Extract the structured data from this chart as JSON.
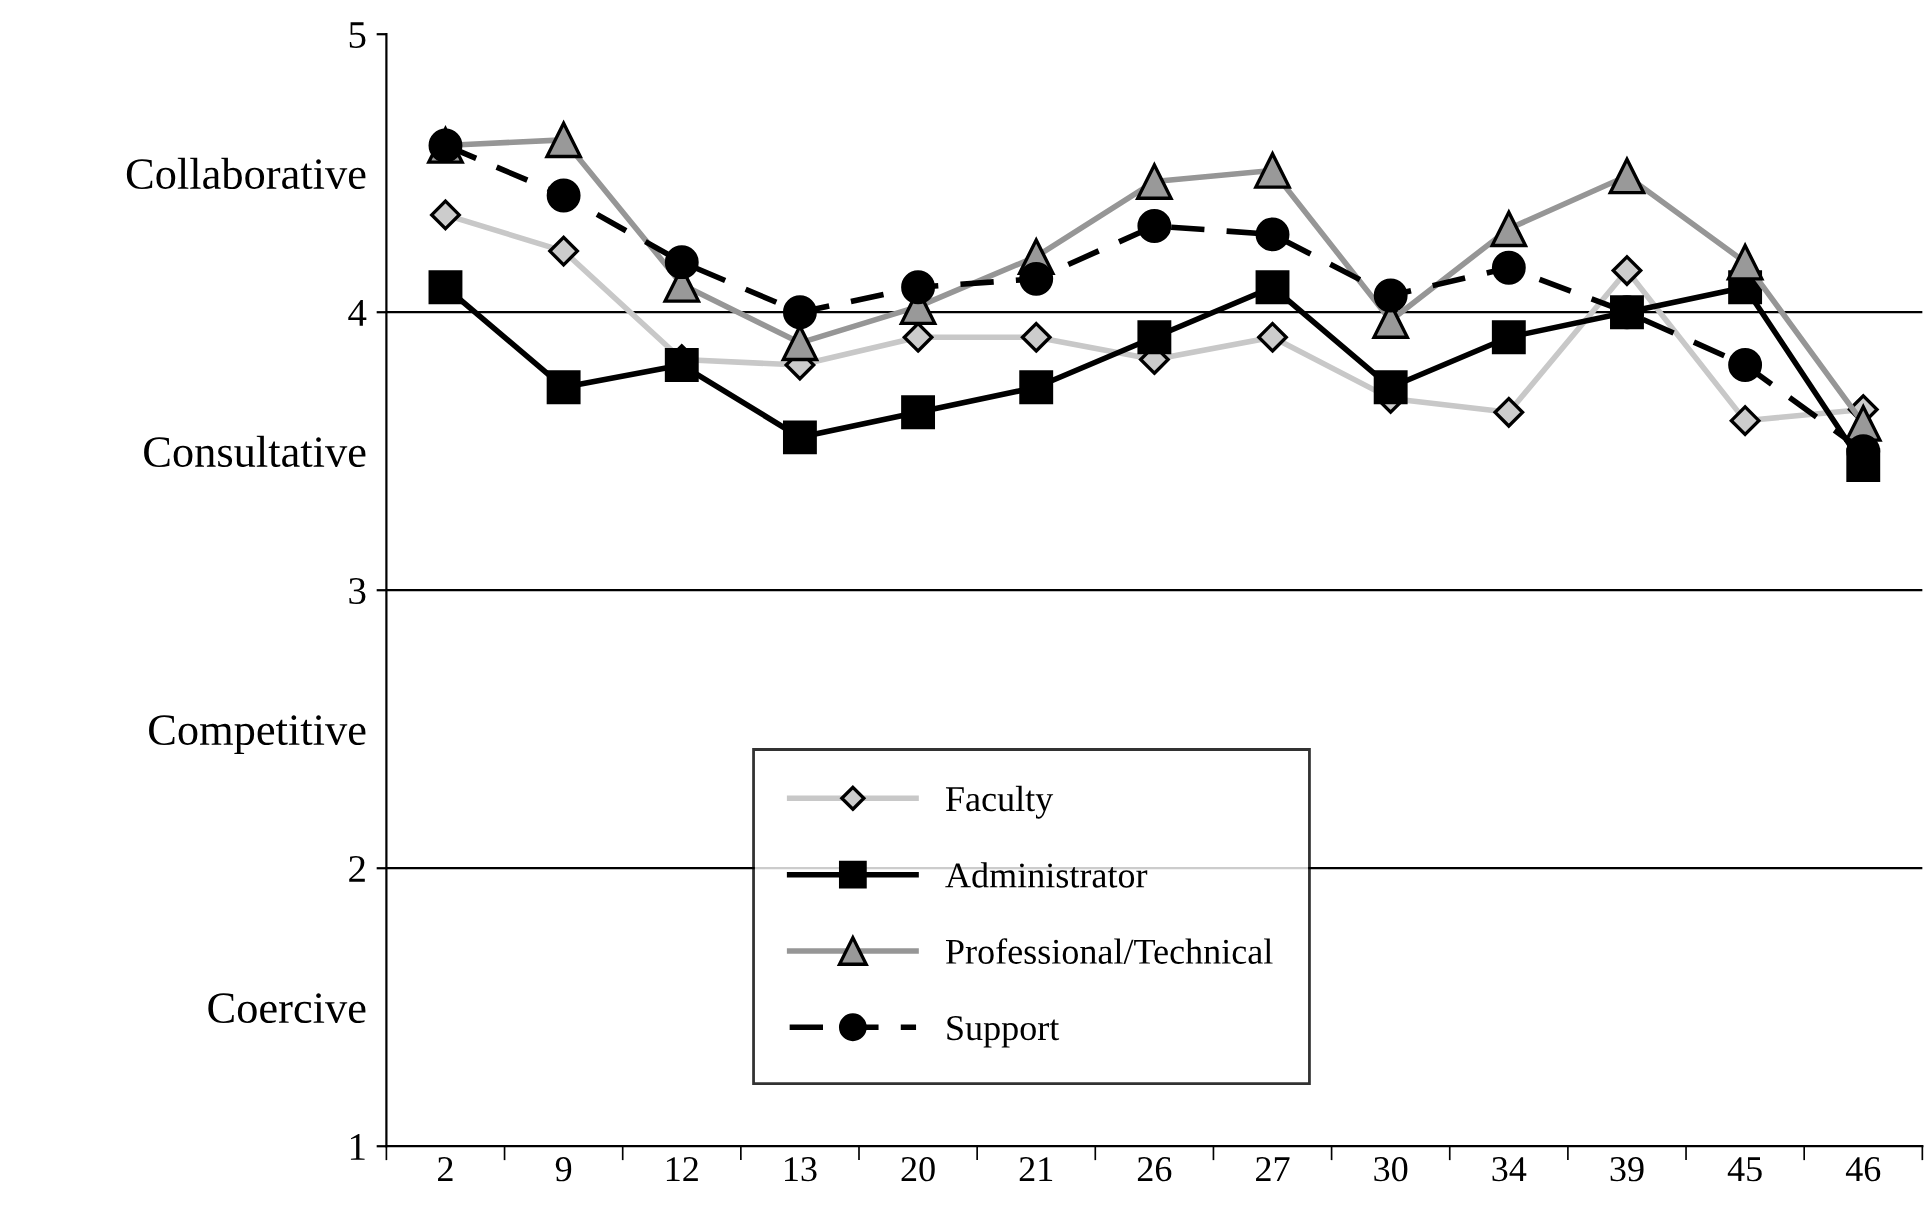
{
  "chart_data": {
    "type": "line",
    "categories": [
      "2",
      "9",
      "12",
      "13",
      "20",
      "21",
      "26",
      "27",
      "30",
      "34",
      "39",
      "45",
      "46"
    ],
    "series": [
      {
        "name": "Faculty",
        "color": "#c8c8c8",
        "marker": "diamond",
        "line_style": "solid",
        "values": [
          4.35,
          4.22,
          3.83,
          3.81,
          3.91,
          3.91,
          3.83,
          3.91,
          3.69,
          3.64,
          4.15,
          3.61,
          3.65
        ]
      },
      {
        "name": "Administrator",
        "color": "#000000",
        "marker": "square",
        "line_style": "solid",
        "values": [
          4.09,
          3.73,
          3.81,
          3.55,
          3.64,
          3.73,
          3.91,
          4.09,
          3.73,
          3.91,
          4.0,
          4.09,
          3.45
        ]
      },
      {
        "name": "Professional/Technical",
        "color": "#969696",
        "marker": "triangle",
        "line_style": "solid",
        "values": [
          4.6,
          4.62,
          4.1,
          3.89,
          4.02,
          4.2,
          4.47,
          4.51,
          3.97,
          4.3,
          4.49,
          4.18,
          3.6
        ]
      },
      {
        "name": "Support",
        "color": "#000000",
        "marker": "circle",
        "line_style": "dashed",
        "values": [
          4.6,
          4.42,
          4.18,
          4.0,
          4.09,
          4.12,
          4.31,
          4.28,
          4.06,
          4.16,
          4.0,
          3.81,
          3.5
        ]
      }
    ],
    "ylim": [
      1,
      5
    ],
    "yticks": [
      1,
      2,
      3,
      4,
      5,
      {
        "value": 1.5,
        "label": "Coercive"
      },
      {
        "value": 2.5,
        "label": "Competitive"
      },
      {
        "value": 3.5,
        "label": "Consultative"
      },
      {
        "value": 4.5,
        "label": "Collaborative"
      }
    ],
    "grid": "y",
    "legend": "bottom"
  }
}
